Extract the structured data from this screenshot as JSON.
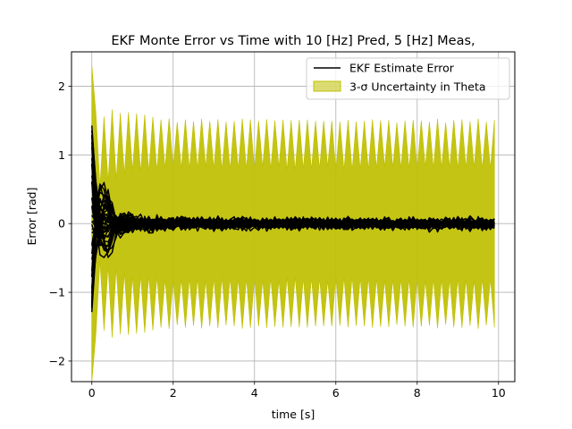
{
  "chart_data": {
    "type": "line",
    "title": "EKF Monte Error vs Time with 10 [Hz] Pred, 5 [Hz] Meas,",
    "xlabel": "time [s]",
    "ylabel": "Error [rad]",
    "xlim": [
      -0.5,
      10.4
    ],
    "ylim": [
      -2.3,
      2.5
    ],
    "xticks": [
      0,
      2,
      4,
      6,
      8,
      10
    ],
    "xtick_labels": [
      "0",
      "2",
      "4",
      "6",
      "8",
      "10"
    ],
    "yticks": [
      -2,
      -1,
      0,
      1,
      2
    ],
    "ytick_labels": [
      "−2",
      "−1",
      "0",
      "1",
      "2"
    ],
    "grid": true,
    "legend": {
      "placement": "upper right",
      "entries": [
        {
          "label": "EKF Estimate Error",
          "kind": "line",
          "color": "#000000"
        },
        {
          "label": "3-σ Uncertainty in Theta",
          "kind": "band",
          "color": "#bfbf00"
        }
      ]
    },
    "uncertainty_band": {
      "name": "3-σ Uncertainty in Theta",
      "color": "#bfbf00",
      "dt": 0.1,
      "t_end": 9.9,
      "meas_period": 0.2,
      "upper_envelope": {
        "t": [
          0,
          0.1,
          0.2,
          0.5,
          1.0,
          1.5,
          2.0,
          3.0,
          5.0,
          9.9
        ],
        "pred_peak": [
          2.45,
          1.6,
          1.5,
          1.65,
          1.6,
          1.55,
          1.5,
          1.5,
          1.5,
          1.5
        ],
        "meas_trough": [
          2.3,
          0.65,
          0.55,
          0.6,
          0.75,
          0.78,
          0.8,
          0.8,
          0.8,
          0.8
        ]
      }
    },
    "error_runs": {
      "name": "EKF Estimate Error",
      "color": "#000000",
      "num_runs": 40,
      "dt": 0.1,
      "t_end": 9.9,
      "initial_spread": [
        -1.3,
        1.5
      ],
      "steady_state_amplitude": 0.3
    }
  }
}
